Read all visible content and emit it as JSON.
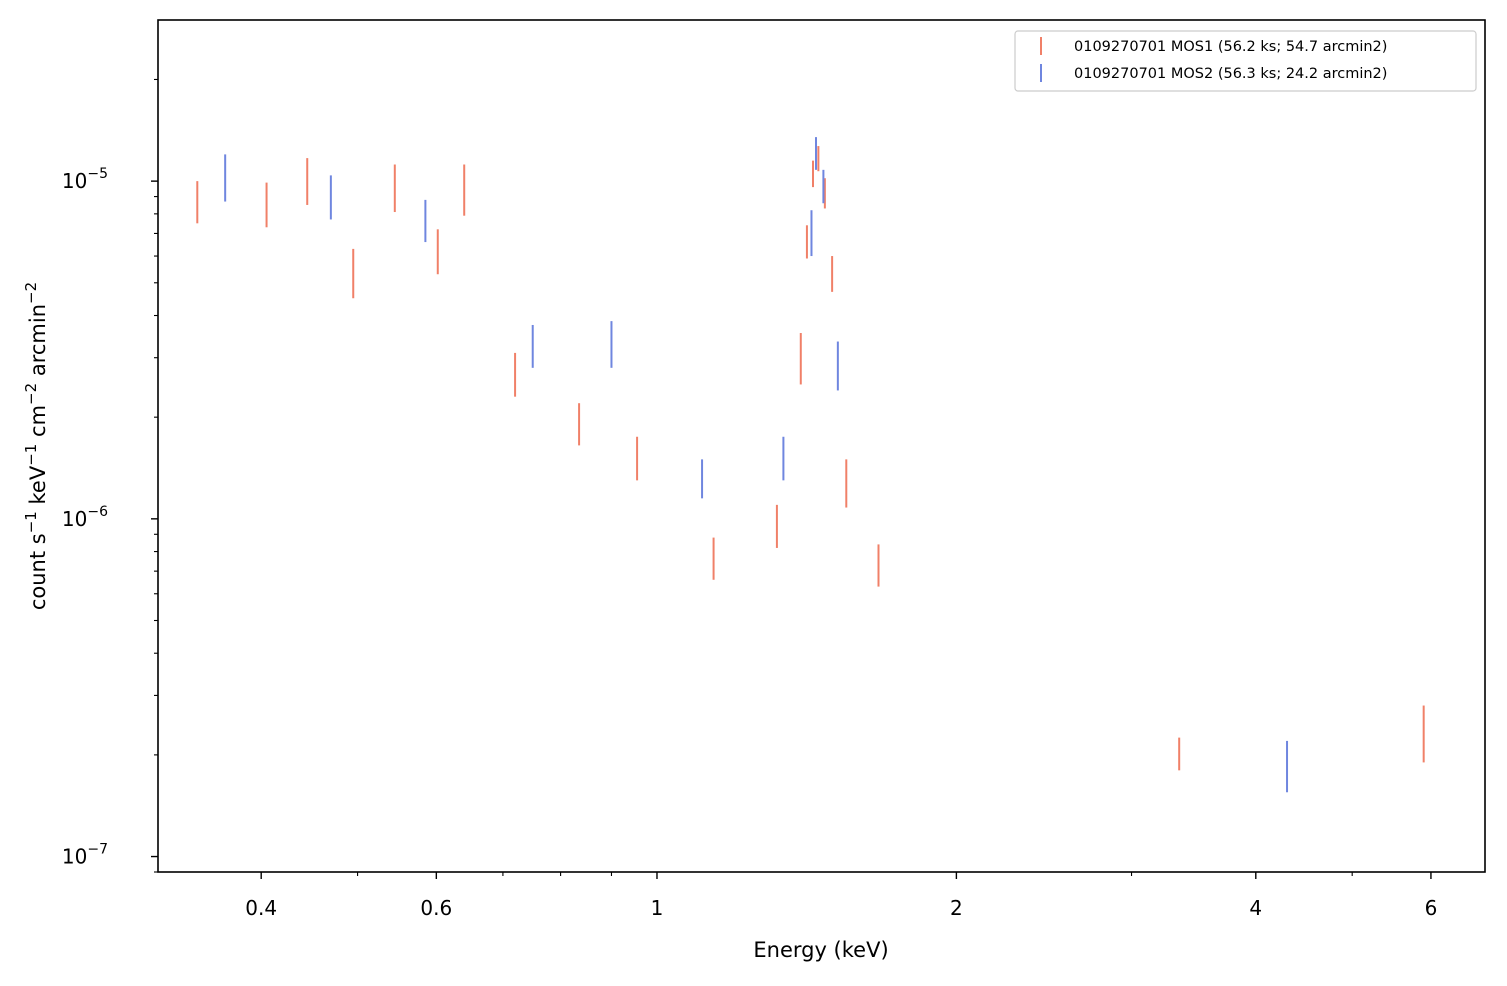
{
  "chart_data": {
    "type": "scatter",
    "title": "",
    "xlabel": "Energy (keV)",
    "ylabel_parts": [
      "count s",
      "−1",
      " keV",
      "−1",
      " cm",
      "−2",
      " arcmin",
      "−2"
    ],
    "xscale": "log",
    "yscale": "log",
    "xlim": [
      0.315,
      6.8
    ],
    "ylim": [
      9e-08,
      3e-05
    ],
    "x_ticks": [
      {
        "value": 0.4,
        "label": "0.4"
      },
      {
        "value": 0.6,
        "label": "0.6"
      },
      {
        "value": 1,
        "label": "1"
      },
      {
        "value": 2,
        "label": "2"
      },
      {
        "value": 4,
        "label": "4"
      },
      {
        "value": 6,
        "label": "6"
      }
    ],
    "y_ticks": [
      {
        "value": 1e-07,
        "base": "10",
        "exp": "−7"
      },
      {
        "value": 1e-06,
        "base": "10",
        "exp": "−6"
      },
      {
        "value": 1e-05,
        "base": "10",
        "exp": "−5"
      }
    ],
    "grid": false,
    "legend_position": "top-right",
    "series": [
      {
        "name": "0109270701 MOS1 (56.2 ks; 54.7 arcmin2)",
        "color": "#f08068",
        "points": [
          {
            "x": 0.345,
            "ylo": 7.5e-06,
            "yhi": 1e-05
          },
          {
            "x": 0.405,
            "ylo": 7.3e-06,
            "yhi": 9.9e-06
          },
          {
            "x": 0.445,
            "ylo": 8.5e-06,
            "yhi": 1.17e-05
          },
          {
            "x": 0.495,
            "ylo": 4.5e-06,
            "yhi": 6.3e-06
          },
          {
            "x": 0.545,
            "ylo": 8.1e-06,
            "yhi": 1.12e-05
          },
          {
            "x": 0.602,
            "ylo": 5.3e-06,
            "yhi": 7.2e-06
          },
          {
            "x": 0.64,
            "ylo": 7.9e-06,
            "yhi": 1.12e-05
          },
          {
            "x": 0.72,
            "ylo": 2.3e-06,
            "yhi": 3.1e-06
          },
          {
            "x": 0.835,
            "ylo": 1.65e-06,
            "yhi": 2.2e-06
          },
          {
            "x": 0.955,
            "ylo": 1.3e-06,
            "yhi": 1.75e-06
          },
          {
            "x": 1.14,
            "ylo": 6.6e-07,
            "yhi": 8.8e-07
          },
          {
            "x": 1.32,
            "ylo": 8.2e-07,
            "yhi": 1.1e-06
          },
          {
            "x": 1.395,
            "ylo": 2.5e-06,
            "yhi": 3.55e-06
          },
          {
            "x": 1.415,
            "ylo": 5.9e-06,
            "yhi": 7.4e-06
          },
          {
            "x": 1.435,
            "ylo": 9.6e-06,
            "yhi": 1.15e-05
          },
          {
            "x": 1.453,
            "ylo": 1.07e-05,
            "yhi": 1.27e-05
          },
          {
            "x": 1.475,
            "ylo": 8.3e-06,
            "yhi": 1.02e-05
          },
          {
            "x": 1.5,
            "ylo": 4.7e-06,
            "yhi": 6e-06
          },
          {
            "x": 1.55,
            "ylo": 1.08e-06,
            "yhi": 1.5e-06
          },
          {
            "x": 1.67,
            "ylo": 6.3e-07,
            "yhi": 8.4e-07
          },
          {
            "x": 3.35,
            "ylo": 1.8e-07,
            "yhi": 2.25e-07
          },
          {
            "x": 5.9,
            "ylo": 1.9e-07,
            "yhi": 2.8e-07
          }
        ]
      },
      {
        "name": "0109270701 MOS2 (56.3 ks; 24.2 arcmin2)",
        "color": "#6f86df",
        "points": [
          {
            "x": 0.368,
            "ylo": 8.7e-06,
            "yhi": 1.2e-05
          },
          {
            "x": 0.47,
            "ylo": 7.7e-06,
            "yhi": 1.04e-05
          },
          {
            "x": 0.585,
            "ylo": 6.6e-06,
            "yhi": 8.8e-06
          },
          {
            "x": 0.75,
            "ylo": 2.8e-06,
            "yhi": 3.75e-06
          },
          {
            "x": 0.9,
            "ylo": 2.8e-06,
            "yhi": 3.85e-06
          },
          {
            "x": 1.11,
            "ylo": 1.15e-06,
            "yhi": 1.5e-06
          },
          {
            "x": 1.34,
            "ylo": 1.3e-06,
            "yhi": 1.75e-06
          },
          {
            "x": 1.43,
            "ylo": 6e-06,
            "yhi": 8.2e-06
          },
          {
            "x": 1.445,
            "ylo": 1.08e-05,
            "yhi": 1.35e-05
          },
          {
            "x": 1.47,
            "ylo": 8.6e-06,
            "yhi": 1.08e-05
          },
          {
            "x": 1.52,
            "ylo": 2.4e-06,
            "yhi": 3.35e-06
          },
          {
            "x": 4.3,
            "ylo": 1.55e-07,
            "yhi": 2.2e-07
          }
        ]
      }
    ]
  }
}
